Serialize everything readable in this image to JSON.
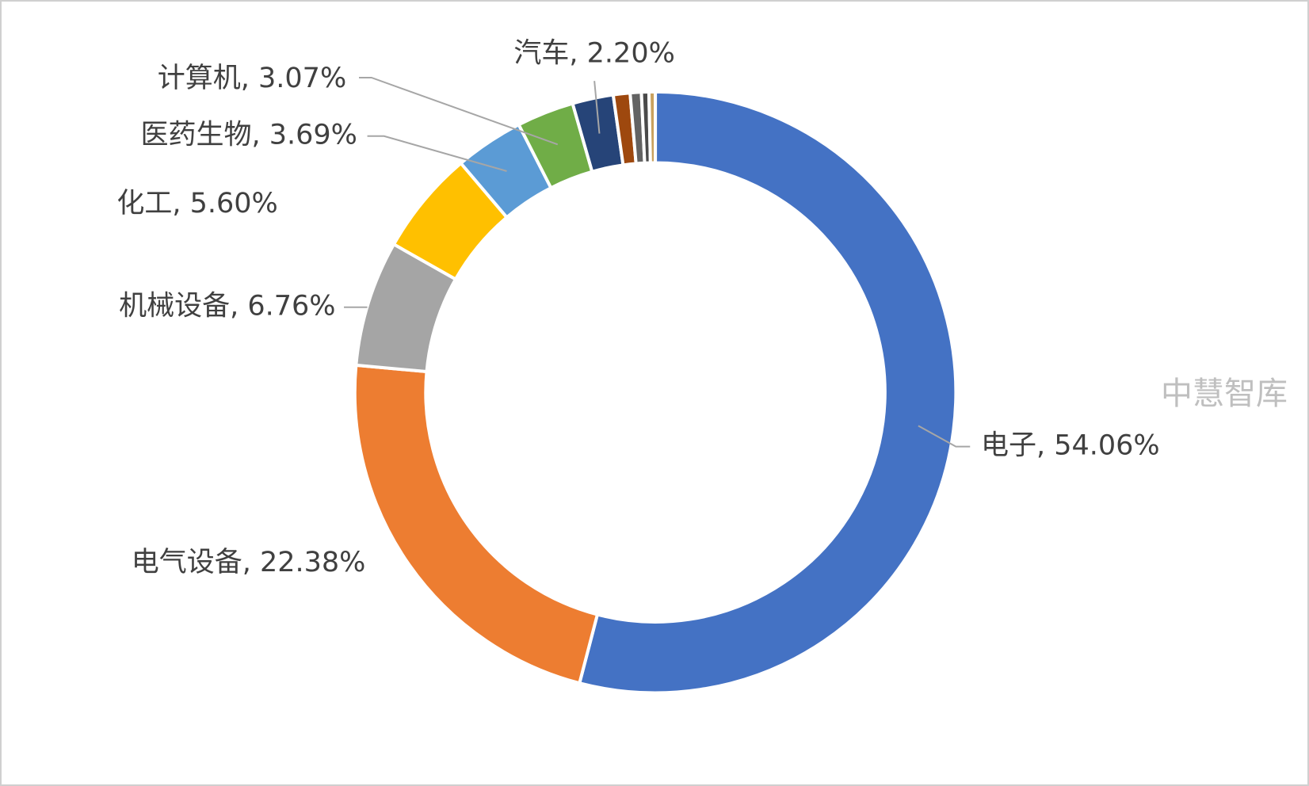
{
  "chart_data": {
    "type": "pie",
    "labels": [
      "电子, 54.06%",
      "电气设备, 22.38%",
      "机械设备, 6.76%",
      "化工, 5.60%",
      "医药生物, 3.69%",
      "计算机, 3.07%",
      "汽车, 2.20%",
      null,
      null,
      null,
      null
    ],
    "values": [
      54.06,
      22.38,
      6.76,
      5.6,
      3.69,
      3.07,
      2.2,
      0.9,
      0.6,
      0.4,
      0.34
    ],
    "colors": [
      "#4472c4",
      "#ed7d31",
      "#a5a5a5",
      "#ffc000",
      "#5b9bd5",
      "#70ad47",
      "#264478",
      "#9e480e",
      "#636363",
      "#4a4a4a",
      "#c9a15e"
    ],
    "donut": true,
    "watermark": "中慧智库"
  }
}
